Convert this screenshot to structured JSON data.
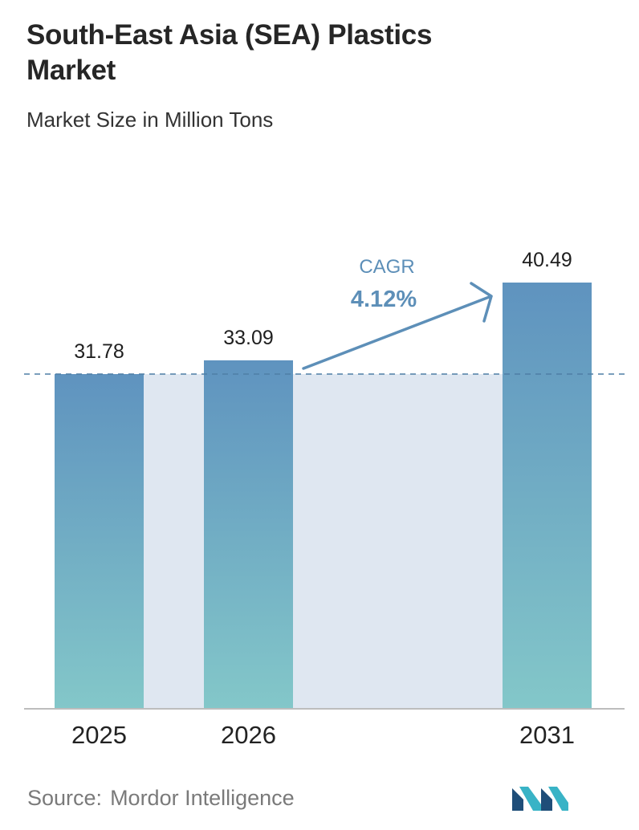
{
  "title": "South-East Asia (SEA) Plastics Market",
  "subtitle": "Market Size in Million Tons",
  "chart_data": {
    "type": "bar",
    "categories": [
      "2025",
      "2026",
      "2031"
    ],
    "values": [
      31.78,
      33.09,
      40.49
    ],
    "data_labels": [
      "31.78",
      "33.09",
      "40.49"
    ],
    "title": "South-East Asia (SEA) Plastics Market",
    "subtitle": "Market Size in Million Tons",
    "xlabel": "",
    "ylabel": "",
    "ylim": [
      0,
      40.49
    ],
    "grid": false,
    "reference_line": {
      "value": 31.78,
      "style": "dashed"
    },
    "annotation": {
      "label": "CAGR",
      "value": "4.12%"
    },
    "colors": {
      "bar_top": "#5f93bf",
      "bar_bottom": "#83c7c9",
      "band": "#dfe7f1",
      "annotation": "#5d8fb8",
      "axis": "#bdbdbd"
    }
  },
  "source": {
    "label": "Source:",
    "name": "Mordor Intelligence"
  },
  "logo": {
    "icon": "mordor-intelligence-logo-icon",
    "colors": [
      "#1f4e79",
      "#39b3c6"
    ]
  }
}
